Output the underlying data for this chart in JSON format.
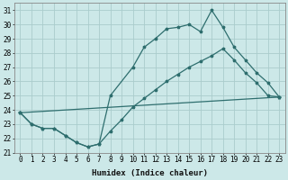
{
  "title": "",
  "xlabel": "Humidex (Indice chaleur)",
  "bg_color": "#cce8e8",
  "grid_color": "#aacccc",
  "line_color": "#2e6e6e",
  "xlim": [
    -0.5,
    23.5
  ],
  "ylim": [
    21,
    31.5
  ],
  "yticks": [
    21,
    22,
    23,
    24,
    25,
    26,
    27,
    28,
    29,
    30,
    31
  ],
  "xticks": [
    0,
    1,
    2,
    3,
    4,
    5,
    6,
    7,
    8,
    9,
    10,
    11,
    12,
    13,
    14,
    15,
    16,
    17,
    18,
    19,
    20,
    21,
    22,
    23
  ],
  "series1_x": [
    0,
    1,
    2,
    3,
    4,
    5,
    6,
    7,
    8,
    10,
    11,
    12,
    13,
    14,
    15,
    16,
    17,
    18,
    19,
    20,
    21,
    22,
    23
  ],
  "series1_y": [
    23.8,
    23.0,
    22.7,
    22.7,
    22.2,
    21.7,
    21.4,
    21.6,
    25.0,
    27.0,
    28.4,
    29.0,
    29.7,
    29.8,
    30.0,
    29.5,
    31.0,
    29.8,
    28.4,
    27.5,
    26.6,
    25.9,
    24.9
  ],
  "series2_x": [
    0,
    1,
    2,
    3,
    4,
    5,
    6,
    7,
    8,
    9,
    10,
    11,
    12,
    13,
    14,
    15,
    16,
    17,
    18,
    19,
    20,
    21,
    22,
    23
  ],
  "series2_y": [
    23.8,
    23.0,
    22.7,
    22.7,
    22.2,
    21.7,
    21.4,
    21.6,
    22.5,
    23.3,
    24.2,
    24.8,
    25.4,
    26.0,
    26.5,
    27.0,
    27.4,
    27.8,
    28.3,
    27.5,
    26.6,
    25.9,
    25.0,
    24.9
  ],
  "series3_x": [
    0,
    23
  ],
  "series3_y": [
    23.8,
    24.9
  ],
  "tick_fontsize": 5.5,
  "xlabel_fontsize": 6.5
}
